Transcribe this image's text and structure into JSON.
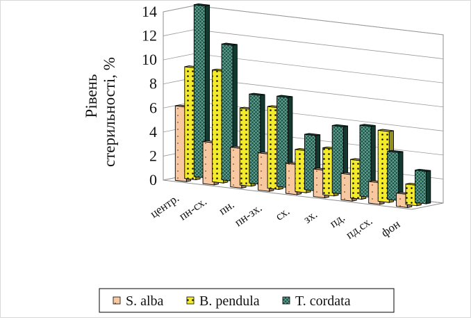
{
  "chart_data": {
    "type": "bar",
    "title": "",
    "xlabel": "",
    "ylabel_lines": [
      "Рівень",
      "стерильності, %"
    ],
    "ylim": [
      0,
      14
    ],
    "yticks": [
      0,
      2,
      4,
      6,
      8,
      10,
      12,
      14
    ],
    "grid": true,
    "legend_position": "bottom",
    "categories": [
      "центр.",
      "пн-сх.",
      "пн.",
      "пн-зх.",
      "сх.",
      "зх.",
      "пд.",
      "пд.сх.",
      "фон"
    ],
    "series": [
      {
        "name": "S. alba",
        "color": "#f8c9a0",
        "values": [
          6.2,
          3.5,
          3.3,
          3.1,
          2.5,
          2.3,
          2.2,
          1.8,
          1.1
        ]
      },
      {
        "name": "B. pendula",
        "color": "#f2ea2a",
        "values": [
          9.3,
          9.3,
          6.4,
          6.8,
          3.5,
          3.9,
          3.2,
          5.9,
          1.7
        ]
      },
      {
        "name": "T. cordata",
        "color": "#1f5a4e",
        "values": [
          14.3,
          11.3,
          7.4,
          7.5,
          4.6,
          5.6,
          5.9,
          4.0,
          2.7
        ]
      }
    ]
  }
}
